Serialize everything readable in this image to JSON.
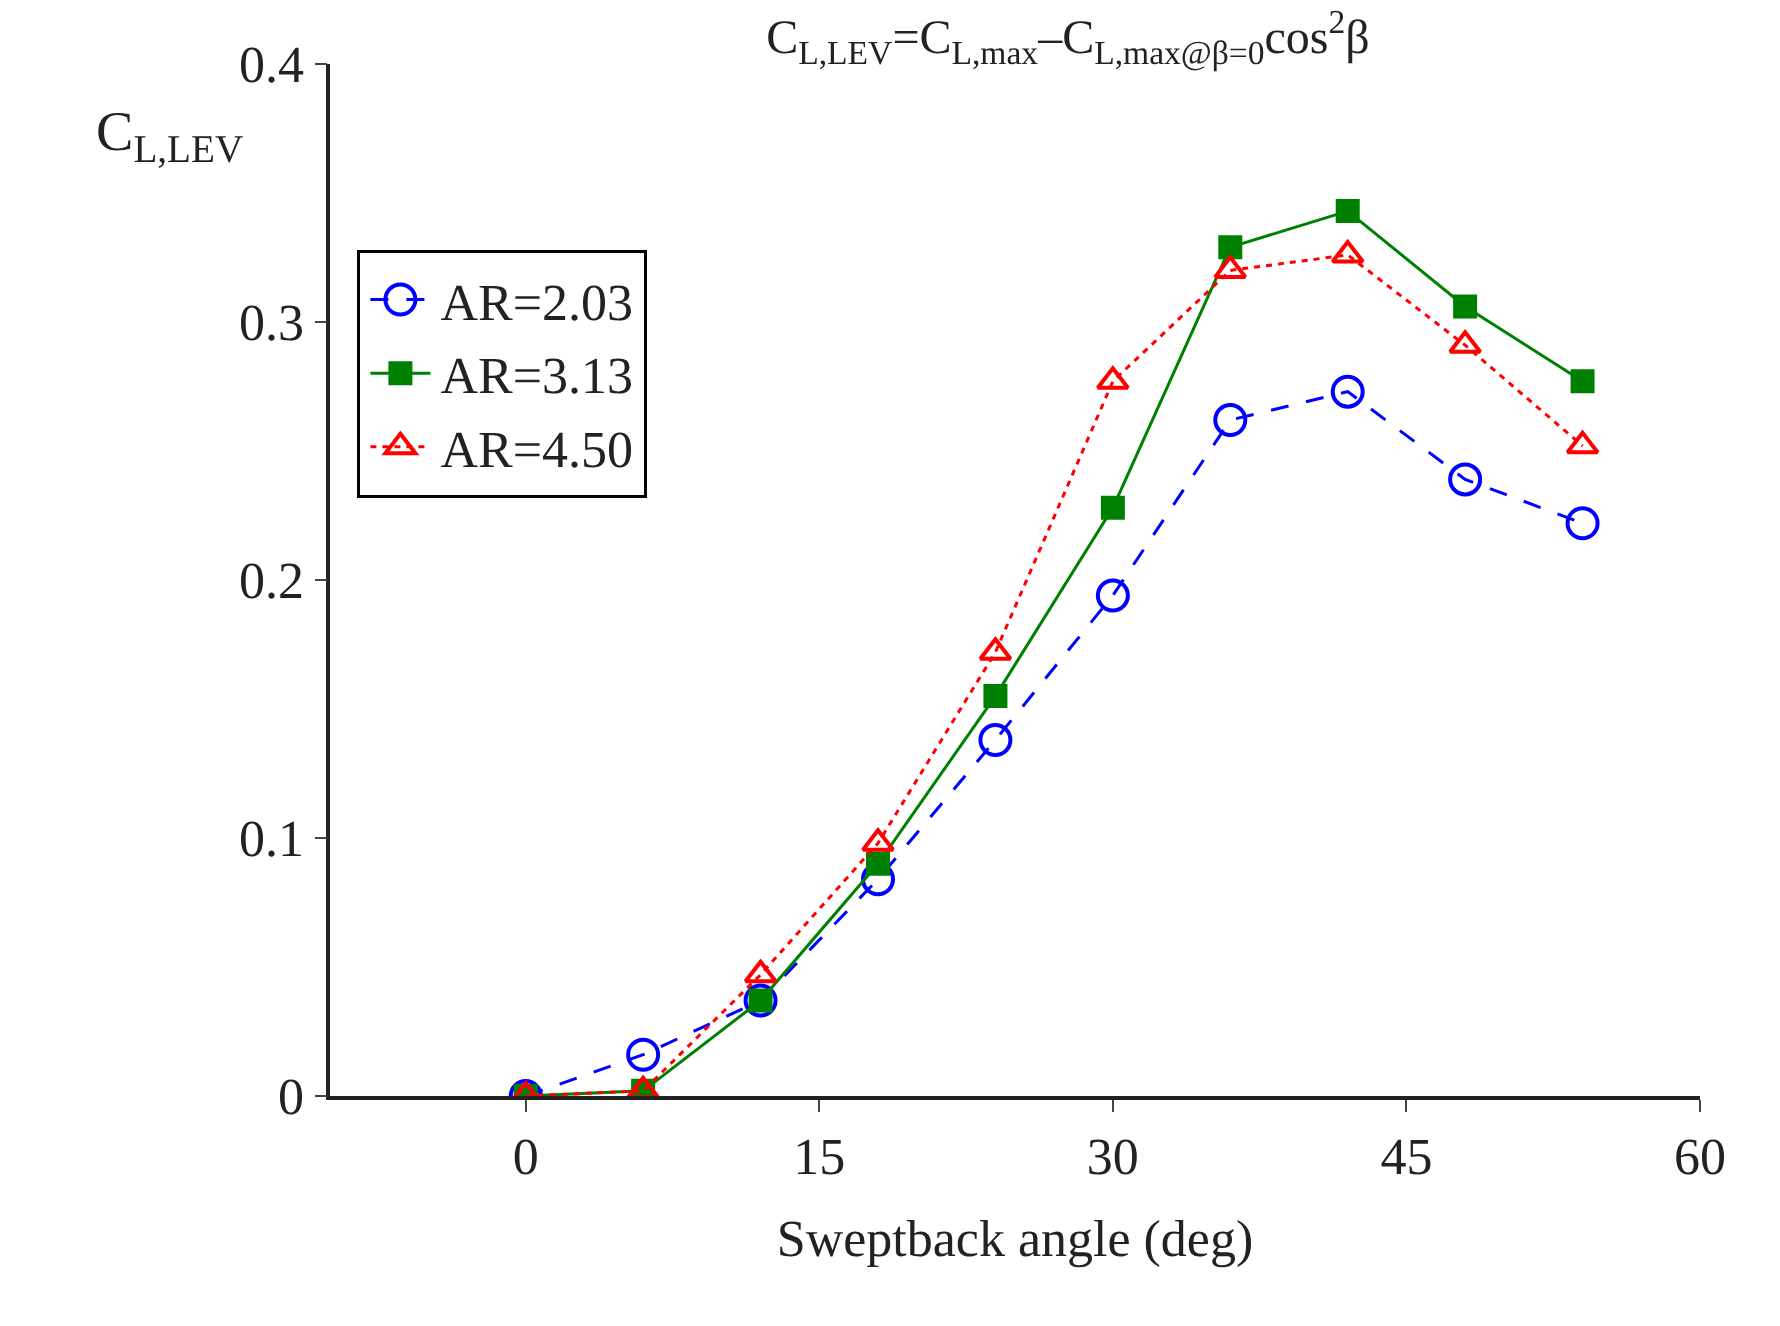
{
  "chart_data": {
    "type": "line",
    "title": "C$_{L,LEV}$=C$_{L,max}$–C$_{L,max@β=0}$cos$^{2}$β",
    "xlabel": "Sweptback angle (deg)",
    "ylabel": "C$_{L,LEV}$",
    "x": [
      0,
      6,
      12,
      18,
      24,
      30,
      36,
      42,
      48,
      54
    ],
    "series": [
      {
        "name": "AR=2.03",
        "color": "#0000ff",
        "marker": "circle",
        "line_style": "dashed",
        "values": [
          0,
          0.016,
          0.037,
          0.084,
          0.138,
          0.194,
          0.262,
          0.273,
          0.239,
          0.222
        ]
      },
      {
        "name": "AR=3.13",
        "color": "#008000",
        "marker": "square",
        "line_style": "solid",
        "values": [
          0,
          0.002,
          0.037,
          0.09,
          0.155,
          0.228,
          0.329,
          0.343,
          0.306,
          0.277
        ]
      },
      {
        "name": "AR=4.50",
        "color": "#ff0000",
        "marker": "triangle",
        "line_style": "dotted",
        "values": [
          0,
          0.002,
          0.047,
          0.098,
          0.172,
          0.277,
          0.32,
          0.326,
          0.291,
          0.252
        ]
      }
    ],
    "xlim": [
      -10,
      60
    ],
    "xticks": [
      0,
      15,
      30,
      45,
      60
    ],
    "ylim": [
      0,
      0.4
    ],
    "yticks": [
      0,
      0.1,
      0.2,
      0.3,
      0.4
    ],
    "grid": false,
    "legend": "top left"
  }
}
